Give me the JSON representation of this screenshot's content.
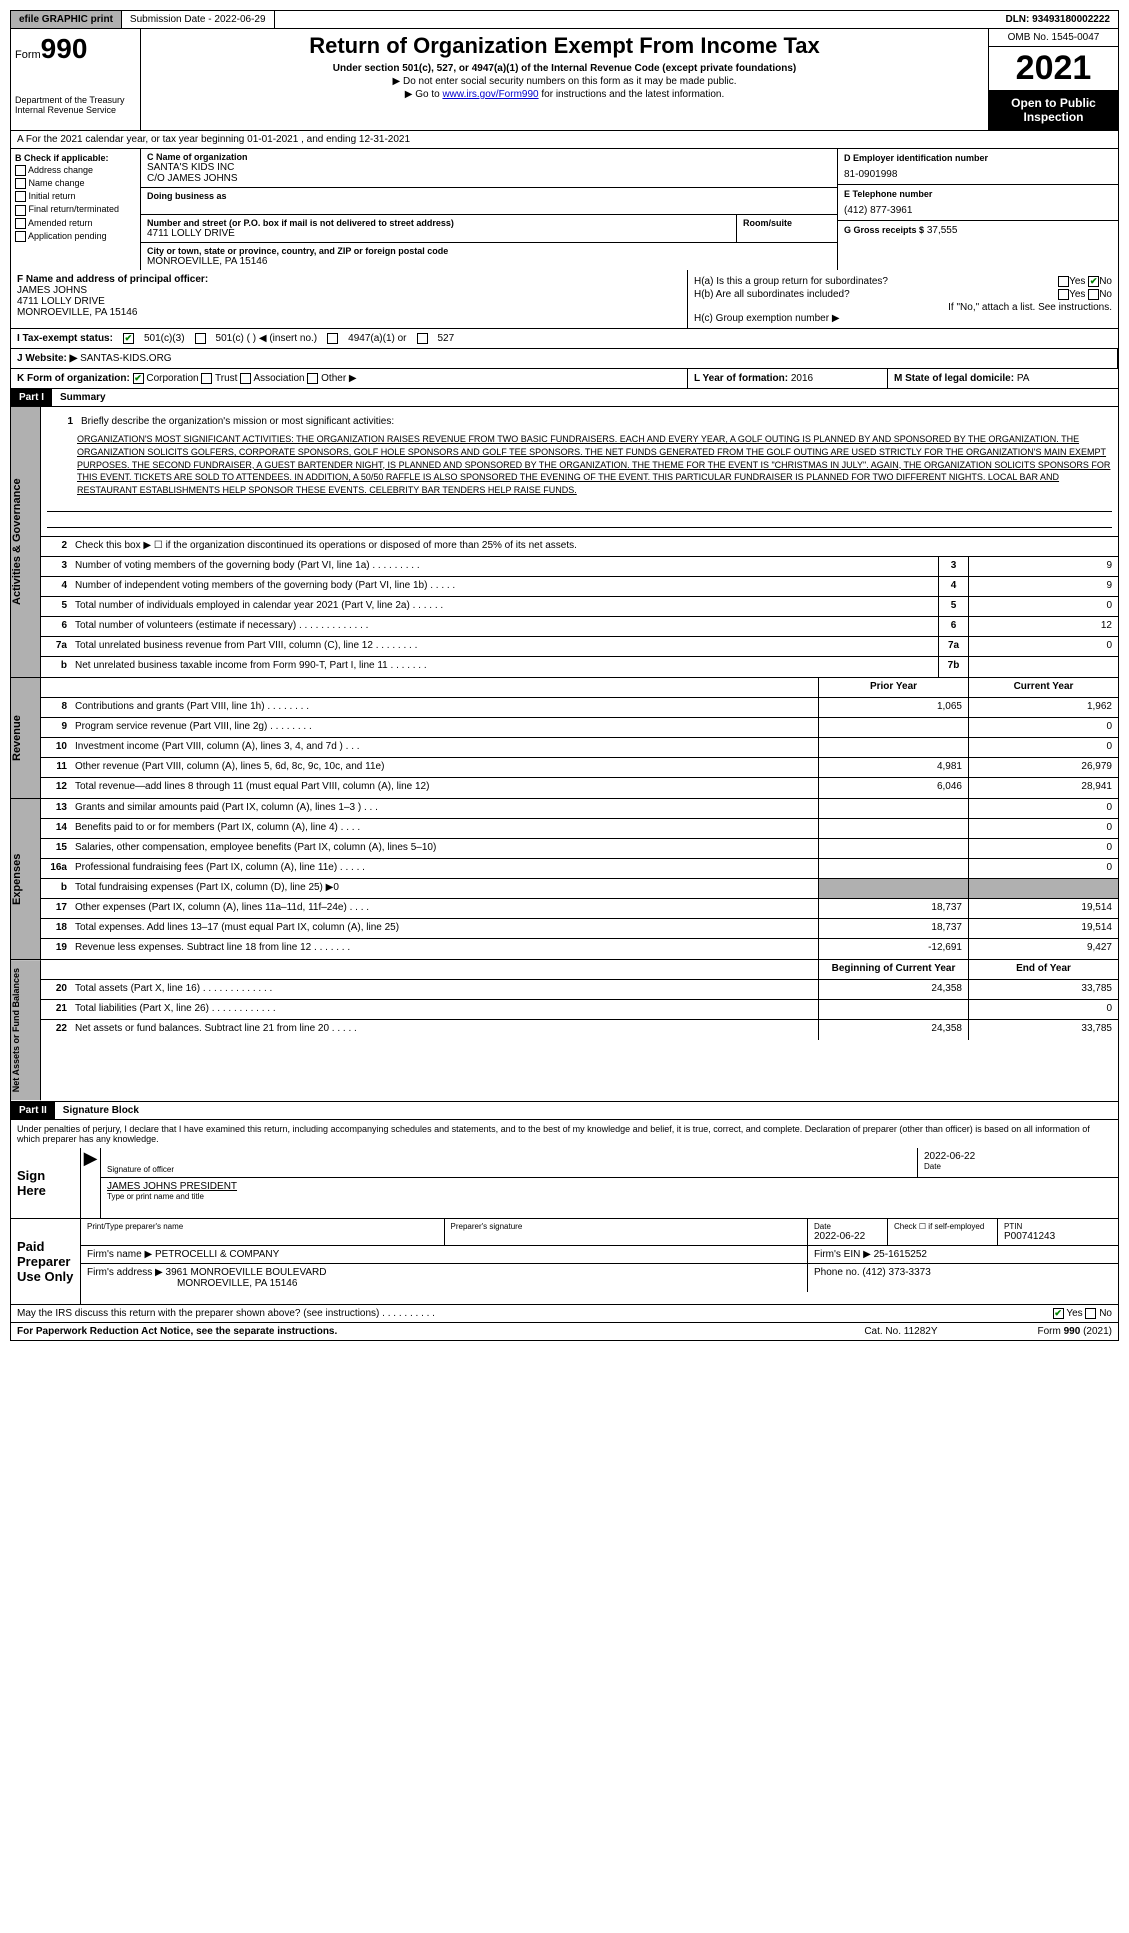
{
  "topbar": {
    "efile": "efile GRAPHIC print",
    "submission": "Submission Date - 2022-06-29",
    "dln": "DLN: 93493180002222"
  },
  "header": {
    "form_label": "Form",
    "form_num": "990",
    "dept": "Department of the Treasury Internal Revenue Service",
    "title": "Return of Organization Exempt From Income Tax",
    "subtitle": "Under section 501(c), 527, or 4947(a)(1) of the Internal Revenue Code (except private foundations)",
    "note1": "▶ Do not enter social security numbers on this form as it may be made public.",
    "note2_pre": "▶ Go to ",
    "note2_link": "www.irs.gov/Form990",
    "note2_post": " for instructions and the latest information.",
    "omb": "OMB No. 1545-0047",
    "year": "2021",
    "inspect": "Open to Public Inspection"
  },
  "row_a": "A For the 2021 calendar year, or tax year beginning 01-01-2021   , and ending 12-31-2021",
  "box_b": {
    "label": "B Check if applicable:",
    "items": [
      "Address change",
      "Name change",
      "Initial return",
      "Final return/terminated",
      "Amended return",
      "Application pending"
    ]
  },
  "box_c": {
    "name_lbl": "C Name of organization",
    "name": "SANTA'S KIDS INC",
    "co": "C/O JAMES JOHNS",
    "dba_lbl": "Doing business as",
    "addr_lbl": "Number and street (or P.O. box if mail is not delivered to street address)",
    "addr": "4711 LOLLY DRIVE",
    "room_lbl": "Room/suite",
    "city_lbl": "City or town, state or province, country, and ZIP or foreign postal code",
    "city": "MONROEVILLE, PA  15146"
  },
  "box_d": {
    "lbl": "D Employer identification number",
    "val": "81-0901998"
  },
  "box_e": {
    "lbl": "E Telephone number",
    "val": "(412) 877-3961"
  },
  "box_g": {
    "lbl": "G Gross receipts $",
    "val": "37,555"
  },
  "box_f": {
    "lbl": "F  Name and address of principal officer:",
    "name": "JAMES JOHNS",
    "addr1": "4711 LOLLY DRIVE",
    "addr2": "MONROEVILLE, PA  15146"
  },
  "box_h": {
    "ha": "H(a)  Is this a group return for subordinates?",
    "hb": "H(b)  Are all subordinates included?",
    "hb_note": "If \"No,\" attach a list. See instructions.",
    "hc": "H(c)  Group exemption number ▶",
    "yes": "Yes",
    "no": "No"
  },
  "tax_status": {
    "lbl": "I   Tax-exempt status:",
    "opts": [
      "501(c)(3)",
      "501(c) (  ) ◀ (insert no.)",
      "4947(a)(1) or",
      "527"
    ]
  },
  "website": {
    "lbl": "J  Website: ▶",
    "val": "SANTAS-KIDS.ORG"
  },
  "box_k": {
    "lbl": "K Form of organization:",
    "opts": [
      "Corporation",
      "Trust",
      "Association",
      "Other ▶"
    ]
  },
  "box_l": {
    "lbl": "L Year of formation:",
    "val": "2016"
  },
  "box_m": {
    "lbl": "M State of legal domicile:",
    "val": "PA"
  },
  "part1": {
    "hdr": "Part I",
    "title": "Summary"
  },
  "summary": {
    "q1": "Briefly describe the organization's mission or most significant activities:",
    "mission": "ORGANIZATION'S MOST SIGNIFICANT ACTIVITIES: THE ORGANIZATION RAISES REVENUE FROM TWO BASIC FUNDRAISERS. EACH AND EVERY YEAR, A GOLF OUTING IS PLANNED BY AND SPONSORED BY THE ORGANIZATION. THE ORGANIZATION SOLICITS GOLFERS, CORPORATE SPONSORS, GOLF HOLE SPONSORS AND GOLF TEE SPONSORS. THE NET FUNDS GENERATED FROM THE GOLF OUTING ARE USED STRICTLY FOR THE ORGANIZATION'S MAIN EXEMPT PURPOSES. THE SECOND FUNDRAISER, A GUEST BARTENDER NIGHT, IS PLANNED AND SPONSORED BY THE ORGANIZATION. THE THEME FOR THE EVENT IS \"CHRISTMAS IN JULY\". AGAIN, THE ORGANIZATION SOLICITS SPONSORS FOR THIS EVENT. TICKETS ARE SOLD TO ATTENDEES. IN ADDITION, A 50/50 RAFFLE IS ALSO SPONSORED THE EVENING OF THE EVENT. THIS PARTICULAR FUNDRAISER IS PLANNED FOR TWO DIFFERENT NIGHTS. LOCAL BAR AND RESTAURANT ESTABLISHMENTS HELP SPONSOR THESE EVENTS. CELEBRITY BAR TENDERS HELP RAISE FUNDS.",
    "q2": "Check this box ▶ ☐ if the organization discontinued its operations or disposed of more than 25% of its net assets."
  },
  "gov_rows": [
    {
      "n": "3",
      "d": "Number of voting members of the governing body (Part VI, line 1a)   .   .   .   .   .   .   .   .   .",
      "b": "3",
      "v": "9"
    },
    {
      "n": "4",
      "d": "Number of independent voting members of the governing body (Part VI, line 1b)  .   .   .   .   .",
      "b": "4",
      "v": "9"
    },
    {
      "n": "5",
      "d": "Total number of individuals employed in calendar year 2021 (Part V, line 2a)  .   .   .   .   .   .",
      "b": "5",
      "v": "0"
    },
    {
      "n": "6",
      "d": "Total number of volunteers (estimate if necessary)   .   .   .   .   .   .   .   .   .   .   .   .   .",
      "b": "6",
      "v": "12"
    },
    {
      "n": "7a",
      "d": "Total unrelated business revenue from Part VIII, column (C), line 12  .   .   .   .   .   .   .   .",
      "b": "7a",
      "v": "0"
    },
    {
      "n": "b",
      "d": "Net unrelated business taxable income from Form 990-T, Part I, line 11  .   .   .   .   .   .   .",
      "b": "7b",
      "v": ""
    }
  ],
  "col_hdrs": {
    "py": "Prior Year",
    "cy": "Current Year",
    "boy": "Beginning of Current Year",
    "eoy": "End of Year"
  },
  "rev_rows": [
    {
      "n": "8",
      "d": "Contributions and grants (Part VIII, line 1h)  .   .   .   .   .   .   .   .",
      "py": "1,065",
      "cy": "1,962"
    },
    {
      "n": "9",
      "d": "Program service revenue (Part VIII, line 2g)  .   .   .   .   .   .   .   .",
      "py": "",
      "cy": "0"
    },
    {
      "n": "10",
      "d": "Investment income (Part VIII, column (A), lines 3, 4, and 7d )  .   .   .",
      "py": "",
      "cy": "0"
    },
    {
      "n": "11",
      "d": "Other revenue (Part VIII, column (A), lines 5, 6d, 8c, 9c, 10c, and 11e)",
      "py": "4,981",
      "cy": "26,979"
    },
    {
      "n": "12",
      "d": "Total revenue—add lines 8 through 11 (must equal Part VIII, column (A), line 12)",
      "py": "6,046",
      "cy": "28,941"
    }
  ],
  "exp_rows": [
    {
      "n": "13",
      "d": "Grants and similar amounts paid (Part IX, column (A), lines 1–3 )  .   .   .",
      "py": "",
      "cy": "0"
    },
    {
      "n": "14",
      "d": "Benefits paid to or for members (Part IX, column (A), line 4)  .   .   .   .",
      "py": "",
      "cy": "0"
    },
    {
      "n": "15",
      "d": "Salaries, other compensation, employee benefits (Part IX, column (A), lines 5–10)",
      "py": "",
      "cy": "0"
    },
    {
      "n": "16a",
      "d": "Professional fundraising fees (Part IX, column (A), line 11e)  .   .   .   .   .",
      "py": "",
      "cy": "0"
    },
    {
      "n": "b",
      "d": "Total fundraising expenses (Part IX, column (D), line 25) ▶0",
      "py": "shaded",
      "cy": "shaded"
    },
    {
      "n": "17",
      "d": "Other expenses (Part IX, column (A), lines 11a–11d, 11f–24e)  .   .   .   .",
      "py": "18,737",
      "cy": "19,514"
    },
    {
      "n": "18",
      "d": "Total expenses. Add lines 13–17 (must equal Part IX, column (A), line 25)",
      "py": "18,737",
      "cy": "19,514"
    },
    {
      "n": "19",
      "d": "Revenue less expenses. Subtract line 18 from line 12  .   .   .   .   .   .   .",
      "py": "-12,691",
      "cy": "9,427"
    }
  ],
  "net_rows": [
    {
      "n": "20",
      "d": "Total assets (Part X, line 16)  .   .   .   .   .   .   .   .   .   .   .   .   .",
      "py": "24,358",
      "cy": "33,785"
    },
    {
      "n": "21",
      "d": "Total liabilities (Part X, line 26)  .   .   .   .   .   .   .   .   .   .   .   .",
      "py": "",
      "cy": "0"
    },
    {
      "n": "22",
      "d": "Net assets or fund balances. Subtract line 21 from line 20  .   .   .   .   .",
      "py": "24,358",
      "cy": "33,785"
    }
  ],
  "side_labels": {
    "gov": "Activities & Governance",
    "rev": "Revenue",
    "exp": "Expenses",
    "net": "Net Assets or Fund Balances"
  },
  "part2": {
    "hdr": "Part II",
    "title": "Signature Block"
  },
  "perjury": "Under penalties of perjury, I declare that I have examined this return, including accompanying schedules and statements, and to the best of my knowledge and belief, it is true, correct, and complete. Declaration of preparer (other than officer) is based on all information of which preparer has any knowledge.",
  "sign": {
    "lbl": "Sign Here",
    "sig_lbl": "Signature of officer",
    "date": "2022-06-22",
    "date_lbl": "Date",
    "name": "JAMES JOHNS PRESIDENT",
    "name_lbl": "Type or print name and title"
  },
  "preparer": {
    "lbl": "Paid Preparer Use Only",
    "cols": [
      "Print/Type preparer's name",
      "Preparer's signature",
      "Date",
      "",
      "PTIN"
    ],
    "date": "2022-06-22",
    "check_lbl": "Check ☐ if self-employed",
    "ptin": "P00741243",
    "firm_lbl": "Firm's name    ▶",
    "firm": "PETROCELLI & COMPANY",
    "ein_lbl": "Firm's EIN ▶",
    "ein": "25-1615252",
    "addr_lbl": "Firm's address ▶",
    "addr": "3961 MONROEVILLE BOULEVARD",
    "addr2": "MONROEVILLE, PA  15146",
    "phone_lbl": "Phone no.",
    "phone": "(412) 373-3373"
  },
  "discuss": "May the IRS discuss this return with the preparer shown above? (see instructions)  .   .   .   .   .   .   .   .   .   .",
  "footer": {
    "left": "For Paperwork Reduction Act Notice, see the separate instructions.",
    "mid": "Cat. No. 11282Y",
    "right": "Form 990 (2021)"
  }
}
